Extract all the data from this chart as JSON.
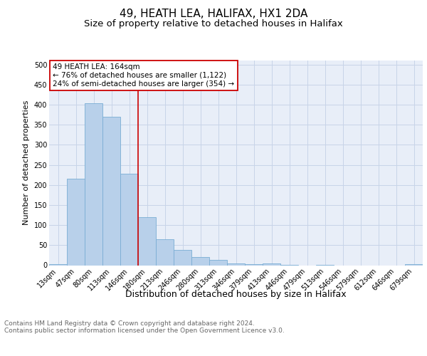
{
  "title": "49, HEATH LEA, HALIFAX, HX1 2DA",
  "subtitle": "Size of property relative to detached houses in Halifax",
  "xlabel": "Distribution of detached houses by size in Halifax",
  "ylabel": "Number of detached properties",
  "categories": [
    "13sqm",
    "47sqm",
    "80sqm",
    "113sqm",
    "146sqm",
    "180sqm",
    "213sqm",
    "246sqm",
    "280sqm",
    "313sqm",
    "346sqm",
    "379sqm",
    "413sqm",
    "446sqm",
    "479sqm",
    "513sqm",
    "546sqm",
    "579sqm",
    "612sqm",
    "646sqm",
    "679sqm"
  ],
  "values": [
    3,
    215,
    403,
    370,
    228,
    120,
    65,
    39,
    20,
    14,
    5,
    2,
    5,
    1,
    0,
    1,
    0,
    0,
    0,
    0,
    2
  ],
  "bar_color": "#b8d0ea",
  "bar_edge_color": "#7aadd4",
  "vline_x": 4.5,
  "vline_color": "#cc0000",
  "annotation_text": "49 HEATH LEA: 164sqm\n← 76% of detached houses are smaller (1,122)\n24% of semi-detached houses are larger (354) →",
  "annotation_box_color": "#ffffff",
  "annotation_box_edge_color": "#cc0000",
  "ylim": [
    0,
    510
  ],
  "yticks": [
    0,
    50,
    100,
    150,
    200,
    250,
    300,
    350,
    400,
    450,
    500
  ],
  "grid_color": "#c8d4e8",
  "footer_text": "Contains HM Land Registry data © Crown copyright and database right 2024.\nContains public sector information licensed under the Open Government Licence v3.0.",
  "bg_color": "#e8eef8",
  "title_fontsize": 11,
  "subtitle_fontsize": 9.5,
  "xlabel_fontsize": 9,
  "ylabel_fontsize": 8,
  "tick_fontsize": 7,
  "footer_fontsize": 6.5,
  "annot_fontsize": 7.5
}
